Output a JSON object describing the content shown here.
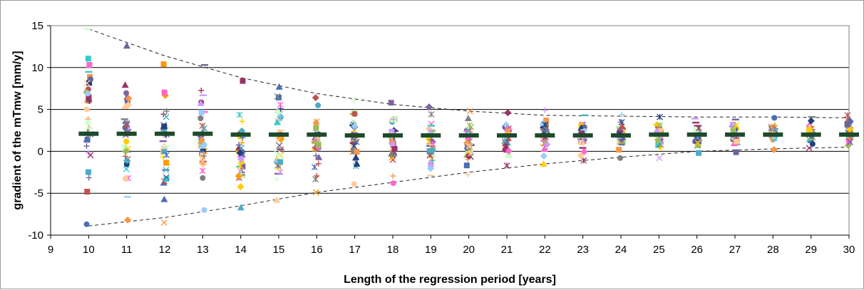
{
  "chart_data": {
    "type": "scatter",
    "xlabel": "Length of the regression period [years]",
    "ylabel": "gradient of the mTmw [mm/y]",
    "xlim": [
      9,
      30
    ],
    "ylim": [
      -10,
      15
    ],
    "x_ticks": [
      "9",
      "10",
      "11",
      "12",
      "13",
      "14",
      "15",
      "16",
      "17",
      "18",
      "19",
      "20",
      "21",
      "22",
      "23",
      "24",
      "25",
      "26",
      "27",
      "28",
      "29",
      "30"
    ],
    "y_ticks": [
      "15",
      "10",
      "5",
      "0",
      "-5",
      "-10"
    ],
    "grid": "horizontal major gridlines",
    "legend": "none",
    "mean_marker_color": "#1e4a2c",
    "envelope_color": "#222222",
    "marker_palette": [
      "#4a6fb5",
      "#c0504d",
      "#9bbb59",
      "#8064a2",
      "#4bacc6",
      "#f79646",
      "#ff66cc",
      "#ffcc00",
      "#7f7f7f",
      "#1f3f7f",
      "#993366",
      "#33cccc",
      "#ffcc99",
      "#99ccff",
      "#cc99ff",
      "#ccffcc",
      "#666699",
      "#ff9900"
    ],
    "series": [
      {
        "role": "regression gradients",
        "points": [
          {
            "x": 10,
            "ymin": -8.7,
            "ymax": 14.6
          },
          {
            "x": 11,
            "ymin": -8.2,
            "ymax": 12.6
          },
          {
            "x": 12,
            "ymin": -8.5,
            "ymax": 10.4
          },
          {
            "x": 13,
            "ymin": -7.0,
            "ymax": 10.3
          },
          {
            "x": 14,
            "ymin": -6.7,
            "ymax": 8.4
          },
          {
            "x": 15,
            "ymin": -5.8,
            "ymax": 7.7
          },
          {
            "x": 16,
            "ymin": -4.9,
            "ymax": 6.4
          },
          {
            "x": 17,
            "ymin": -3.9,
            "ymax": 6.0
          },
          {
            "x": 18,
            "ymin": -3.8,
            "ymax": 5.8
          },
          {
            "x": 19,
            "ymin": -2.9,
            "ymax": 5.3
          },
          {
            "x": 20,
            "ymin": -2.8,
            "ymax": 4.8
          },
          {
            "x": 21,
            "ymin": -1.7,
            "ymax": 4.6
          },
          {
            "x": 22,
            "ymin": -1.5,
            "ymax": 4.9
          },
          {
            "x": 23,
            "ymin": -1.1,
            "ymax": 4.3
          },
          {
            "x": 24,
            "ymin": -0.8,
            "ymax": 4.4
          },
          {
            "x": 25,
            "ymin": -0.8,
            "ymax": 4.1
          },
          {
            "x": 26,
            "ymin": -0.2,
            "ymax": 3.9
          },
          {
            "x": 27,
            "ymin": -0.1,
            "ymax": 3.8
          },
          {
            "x": 28,
            "ymin": 0.2,
            "ymax": 4.0
          },
          {
            "x": 29,
            "ymin": 0.4,
            "ymax": 4.1
          },
          {
            "x": 30,
            "ymin": 0.7,
            "ymax": 4.3
          }
        ]
      },
      {
        "role": "mean gradient",
        "values": [
          {
            "x": 10,
            "y": 2.1
          },
          {
            "x": 11,
            "y": 2.1
          },
          {
            "x": 12,
            "y": 2.1
          },
          {
            "x": 13,
            "y": 2.1
          },
          {
            "x": 14,
            "y": 2.0
          },
          {
            "x": 15,
            "y": 2.0
          },
          {
            "x": 16,
            "y": 2.0
          },
          {
            "x": 17,
            "y": 1.9
          },
          {
            "x": 18,
            "y": 1.9
          },
          {
            "x": 19,
            "y": 1.9
          },
          {
            "x": 20,
            "y": 1.9
          },
          {
            "x": 21,
            "y": 1.9
          },
          {
            "x": 22,
            "y": 1.9
          },
          {
            "x": 23,
            "y": 1.9
          },
          {
            "x": 24,
            "y": 1.9
          },
          {
            "x": 25,
            "y": 2.0
          },
          {
            "x": 26,
            "y": 2.0
          },
          {
            "x": 27,
            "y": 2.0
          },
          {
            "x": 28,
            "y": 2.0
          },
          {
            "x": 29,
            "y": 2.0
          },
          {
            "x": 30,
            "y": 2.0
          }
        ]
      },
      {
        "role": "upper envelope",
        "values": [
          {
            "x": 10,
            "y": 14.6
          },
          {
            "x": 12,
            "y": 11.4
          },
          {
            "x": 14,
            "y": 8.8
          },
          {
            "x": 16,
            "y": 6.9
          },
          {
            "x": 18,
            "y": 5.6
          },
          {
            "x": 20,
            "y": 4.8
          },
          {
            "x": 22,
            "y": 4.3
          },
          {
            "x": 24,
            "y": 4.2
          },
          {
            "x": 26,
            "y": 4.1
          },
          {
            "x": 28,
            "y": 4.1
          },
          {
            "x": 30,
            "y": 4.0
          }
        ]
      },
      {
        "role": "lower envelope",
        "values": [
          {
            "x": 10,
            "y": -8.9
          },
          {
            "x": 12,
            "y": -7.9
          },
          {
            "x": 14,
            "y": -6.5
          },
          {
            "x": 16,
            "y": -4.9
          },
          {
            "x": 18,
            "y": -3.7
          },
          {
            "x": 20,
            "y": -2.5
          },
          {
            "x": 22,
            "y": -1.5
          },
          {
            "x": 24,
            "y": -0.7
          },
          {
            "x": 26,
            "y": 0.0
          },
          {
            "x": 28,
            "y": 0.3
          },
          {
            "x": 30,
            "y": 0.5
          }
        ]
      }
    ]
  }
}
